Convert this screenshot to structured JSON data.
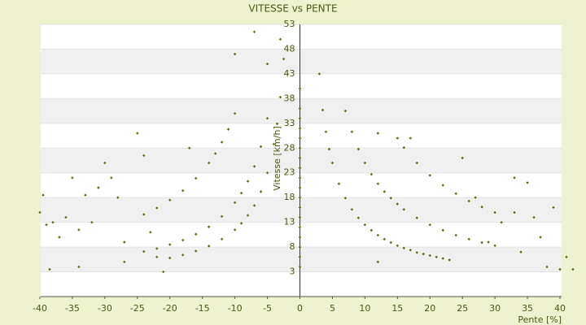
{
  "chart_data": {
    "type": "scatter",
    "title": "VITESSE vs PENTE",
    "x_label": "Pente [%]",
    "y_label": "Vitesse [km/h]",
    "xlim": [
      -40,
      40
    ],
    "ylim": [
      -2,
      53
    ],
    "xticks": [
      -40,
      -35,
      -30,
      -25,
      -20,
      -15,
      -10,
      -5,
      0,
      5,
      10,
      15,
      20,
      25,
      30,
      35,
      40
    ],
    "yticks": [
      3,
      8,
      13,
      18,
      23,
      28,
      33,
      38,
      43,
      48,
      53
    ],
    "grid": true,
    "x": [
      3.5,
      4,
      4.5,
      5,
      6,
      7,
      8,
      9,
      10,
      11,
      12,
      13,
      14,
      15,
      16,
      17,
      18,
      19,
      20,
      21,
      22,
      23,
      8,
      9,
      10,
      11,
      12,
      13,
      14,
      15,
      16,
      18,
      20,
      22,
      24,
      26,
      28,
      30,
      15,
      16,
      18,
      20,
      22,
      24,
      26,
      28,
      30,
      -2.5,
      -3,
      -3.5,
      -4,
      -5,
      -6,
      -7,
      -8,
      -9,
      -10,
      -12,
      -14,
      -16,
      -18,
      -20,
      -5,
      -6,
      -7,
      -8,
      -9,
      -10,
      -12,
      -14,
      -16,
      -18,
      -20,
      -22,
      -24,
      -10,
      -11,
      -12,
      -13,
      -14,
      -16,
      -18,
      -20,
      -22,
      -24,
      0,
      0,
      0,
      0,
      0,
      0,
      0,
      0,
      0,
      0,
      0,
      0,
      0,
      0,
      0,
      0,
      0,
      0,
      -40,
      -39.5,
      -39,
      -38.5,
      -38,
      -37,
      -36,
      -35,
      -34,
      -34,
      -33,
      -32,
      -31,
      -30,
      -29,
      -28,
      -27,
      -27,
      -25,
      -24,
      -23,
      -22,
      -21,
      -17,
      -10,
      -7,
      -5,
      -3,
      3,
      7,
      12,
      12,
      17,
      25,
      27,
      29,
      31,
      33,
      33,
      34,
      35,
      36,
      37,
      38,
      39,
      40,
      41,
      42
    ],
    "series": [
      {
        "name": "Vitesse",
        "color": "#5a6b00",
        "values": [
          35.7,
          31.3,
          27.8,
          25,
          20.8,
          17.9,
          15.6,
          13.9,
          12.5,
          11.4,
          10.4,
          9.6,
          8.9,
          8.3,
          7.8,
          7.4,
          6.9,
          6.6,
          6.3,
          6,
          5.7,
          5.4,
          31.3,
          27.8,
          25,
          22.7,
          20.8,
          19.2,
          17.9,
          16.7,
          15.6,
          13.9,
          12.5,
          11.4,
          10.4,
          9.6,
          8.9,
          8.3,
          30,
          28.1,
          25,
          22.5,
          20.5,
          18.8,
          17.3,
          16.1,
          15,
          46,
          38.3,
          32.9,
          28.8,
          23,
          19.2,
          16.4,
          14.4,
          12.8,
          11.5,
          9.6,
          8.2,
          7.2,
          6.4,
          5.8,
          34,
          28.3,
          24.3,
          21.3,
          18.9,
          17,
          14.2,
          12.1,
          10.6,
          9.4,
          8.5,
          7.7,
          7.1,
          35,
          31.8,
          29.2,
          26.9,
          25,
          21.9,
          19.4,
          17.5,
          15.9,
          14.6,
          4,
          6,
          8,
          10,
          12,
          14,
          16,
          18,
          20,
          22,
          24,
          26,
          28,
          30,
          32,
          34,
          36,
          40,
          15,
          18.5,
          12.5,
          3.5,
          13,
          10,
          14,
          22,
          4,
          11.5,
          18.5,
          13,
          20,
          25,
          22,
          18,
          9,
          5,
          31,
          26.5,
          11,
          6,
          3,
          28,
          47,
          51.5,
          45,
          50,
          43,
          35.5,
          31,
          5,
          30,
          26,
          18,
          9,
          13,
          15,
          22,
          7,
          21,
          14,
          10,
          4,
          16,
          3.5,
          6,
          3.5
        ]
      }
    ]
  }
}
